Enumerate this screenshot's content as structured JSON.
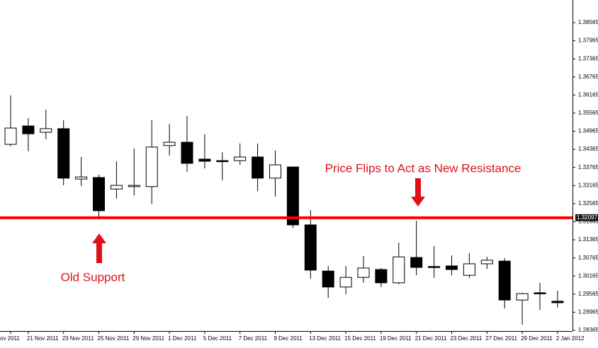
{
  "chart_data": {
    "type": "candlestick",
    "categories": [
      "ov 2011",
      "21 Nov 2011",
      null,
      "23 Nov 2011",
      null,
      "25 Nov 2011",
      null,
      "29 Nov 2011",
      null,
      "1 Dec 2011",
      null,
      "5 Dec 2011",
      null,
      "7 Dec 2011",
      null,
      "9 Dec 2011",
      null,
      "13 Dec 2011",
      null,
      "15 Dec 2011",
      null,
      "19 Dec 2011",
      null,
      "21 Dec 2011",
      null,
      "23 Dec 2011",
      null,
      "27 Dec 2011",
      null,
      "29 Dec 2011",
      null,
      "2 Jan 2012"
    ],
    "open": [
      1.3453,
      1.3514,
      1.3493,
      1.3505,
      1.3338,
      1.3343,
      1.3305,
      1.3313,
      1.3313,
      1.3449,
      1.346,
      1.3404,
      1.3399,
      1.3399,
      1.3411,
      1.3341,
      1.3378,
      1.3186,
      1.3033,
      1.298,
      1.3012,
      1.3038,
      1.2994,
      1.3078,
      1.3048,
      1.305,
      1.3019,
      1.3057,
      1.3066,
      1.2937,
      1.2961,
      1.2933
    ],
    "high": [
      1.3615,
      1.354,
      1.3568,
      1.3533,
      1.3411,
      1.3352,
      1.3397,
      1.3439,
      1.3533,
      1.3521,
      1.3547,
      1.3486,
      1.3427,
      1.3456,
      1.3456,
      1.3432,
      1.3378,
      1.3235,
      1.305,
      1.305,
      1.3083,
      1.3043,
      1.3127,
      1.32,
      1.3116,
      1.3085,
      1.3092,
      1.308,
      1.3076,
      1.2961,
      1.2994,
      1.2968
    ],
    "low": [
      1.3446,
      1.343,
      1.347,
      1.3317,
      1.3315,
      1.3209,
      1.3273,
      1.3284,
      1.3256,
      1.3416,
      1.3362,
      1.3373,
      1.3334,
      1.3385,
      1.3298,
      1.328,
      1.3176,
      1.3008,
      1.2944,
      1.2956,
      1.2994,
      1.298,
      1.2989,
      1.3019,
      1.301,
      1.3019,
      1.301,
      1.304,
      1.2909,
      1.2855,
      1.2904,
      1.2912
    ],
    "close": [
      1.3507,
      1.3488,
      1.3505,
      1.3341,
      1.3345,
      1.3233,
      1.3317,
      1.3317,
      1.3444,
      1.346,
      1.339,
      1.3397,
      1.3398,
      1.3411,
      1.3341,
      1.3385,
      1.3186,
      1.3036,
      1.298,
      1.3012,
      1.3043,
      1.2994,
      1.308,
      1.3045,
      1.3045,
      1.3038,
      1.3057,
      1.3069,
      1.2937,
      1.2958,
      1.2958,
      1.2928
    ],
    "up_color": "#ffffff",
    "down_color": "#000000",
    "ylim": [
      1.28365,
      1.39315
    ],
    "yticks": [
      1.38565,
      1.37965,
      1.37365,
      1.36765,
      1.36165,
      1.35565,
      1.34965,
      1.34365,
      1.33765,
      1.33165,
      1.32565,
      1.31965,
      1.31365,
      1.30765,
      1.30165,
      1.29565,
      1.28965,
      1.28365
    ],
    "level": {
      "value": 1.32097,
      "label": "1.32097",
      "color": "#ff0000"
    },
    "annotations": [
      "Price Flips to Act as New Resistance",
      "Old Support"
    ]
  }
}
